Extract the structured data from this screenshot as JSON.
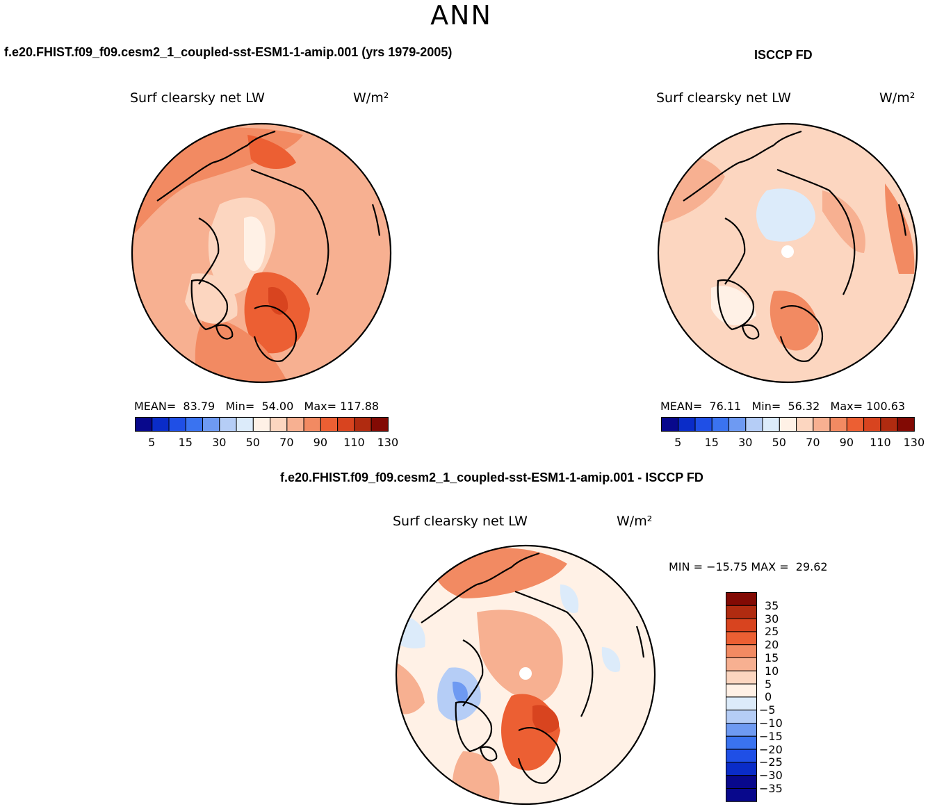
{
  "season": "ANN",
  "colors": {
    "abs_palette": [
      "#08088c",
      "#0a2cc8",
      "#1f4fe6",
      "#3a73f0",
      "#6e9af2",
      "#b5cdf6",
      "#dcebfa",
      "#fff1e6",
      "#fcd6c0",
      "#f7b091",
      "#f28a62",
      "#ec5f33",
      "#d8441f",
      "#b02b10",
      "#820a04"
    ],
    "diff_palette": [
      "#08088c",
      "#0a2cc8",
      "#1f4fe6",
      "#3a73f0",
      "#6e9af2",
      "#b5cdf6",
      "#dcebfa",
      "#fff1e6",
      "#fcd6c0",
      "#f7b091",
      "#f28a62",
      "#ec5f33",
      "#d8441f",
      "#b02b10",
      "#820a04"
    ]
  },
  "panels": {
    "model": {
      "case_title": "f.e20.FHIST.f09_f09.cesm2_1_coupled-sst-ESM1-1-amip.001 (yrs 1979-2005)",
      "plot_title": "Surf clearsky net LW",
      "units": "W/m²",
      "mean_label": "MEAN=",
      "mean": "83.79",
      "min_label": "Min=",
      "min": "54.00",
      "max_label": "Max=",
      "max": "117.88",
      "colorbar_ticks": [
        "5",
        "15",
        "30",
        "50",
        "70",
        "90",
        "110",
        "130"
      ]
    },
    "obs": {
      "case_title": "ISCCP FD",
      "plot_title": "Surf clearsky net LW",
      "units": "W/m²",
      "mean_label": "MEAN=",
      "mean": "76.11",
      "min_label": "Min=",
      "min": "56.32",
      "max_label": "Max=",
      "max": "100.63",
      "colorbar_ticks": [
        "5",
        "15",
        "30",
        "50",
        "70",
        "90",
        "110",
        "130"
      ]
    },
    "diff": {
      "case_title": "f.e20.FHIST.f09_f09.cesm2_1_coupled-sst-ESM1-1-amip.001 - ISCCP FD",
      "plot_title": "Surf clearsky net LW",
      "units": "W/m²",
      "min_label": "MIN =",
      "min": "−15.75",
      "max_label": "MAX =",
      "max": "29.62",
      "colorbar_ticks": [
        "35",
        "30",
        "25",
        "20",
        "15",
        "10",
        "5",
        "0",
        "−5",
        "−10",
        "−15",
        "−20",
        "−25",
        "−30",
        "−35"
      ]
    }
  }
}
